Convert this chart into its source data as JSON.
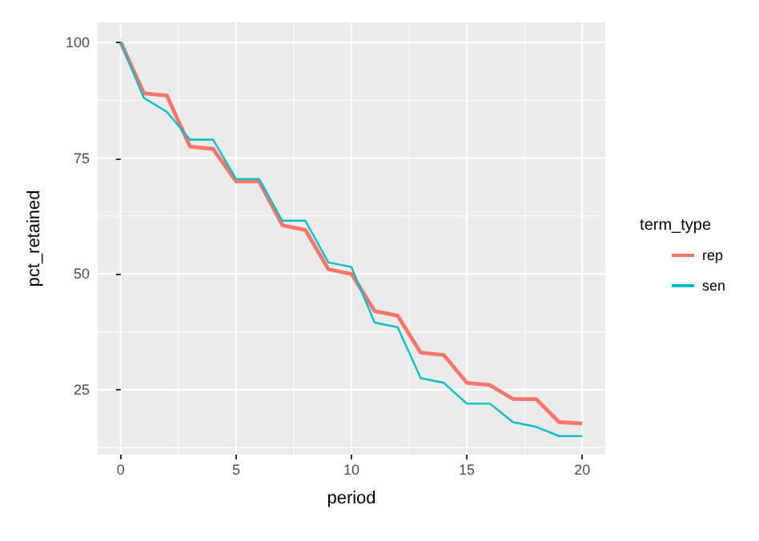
{
  "chart_data": {
    "type": "line",
    "xlabel": "period",
    "ylabel": "pct_retained",
    "legend_title": "term_type",
    "x": [
      0,
      1,
      2,
      3,
      4,
      5,
      6,
      7,
      8,
      9,
      10,
      11,
      12,
      13,
      14,
      15,
      16,
      17,
      18,
      19,
      20
    ],
    "series": [
      {
        "name": "rep",
        "color": "#f8766d",
        "values": [
          100,
          89,
          88.5,
          77.5,
          77,
          70,
          70,
          60.5,
          59.5,
          51,
          50,
          42,
          41,
          33,
          32.5,
          26.5,
          26,
          23,
          23,
          18,
          17.7
        ]
      },
      {
        "name": "sen",
        "color": "#00bfc4",
        "values": [
          100,
          88,
          85,
          79,
          79,
          70.5,
          70.5,
          61.5,
          61.5,
          52.5,
          51.5,
          39.5,
          38.5,
          27.5,
          26.5,
          22,
          22,
          18,
          17,
          15,
          15
        ]
      }
    ],
    "xlim": [
      -1,
      21
    ],
    "ylim": [
      11,
      104.3
    ],
    "xticks": [
      0,
      5,
      10,
      15,
      20
    ],
    "yticks": [
      25,
      50,
      75,
      100
    ],
    "grid": true,
    "legend": "right",
    "marker": "none",
    "line_style": "solid"
  }
}
